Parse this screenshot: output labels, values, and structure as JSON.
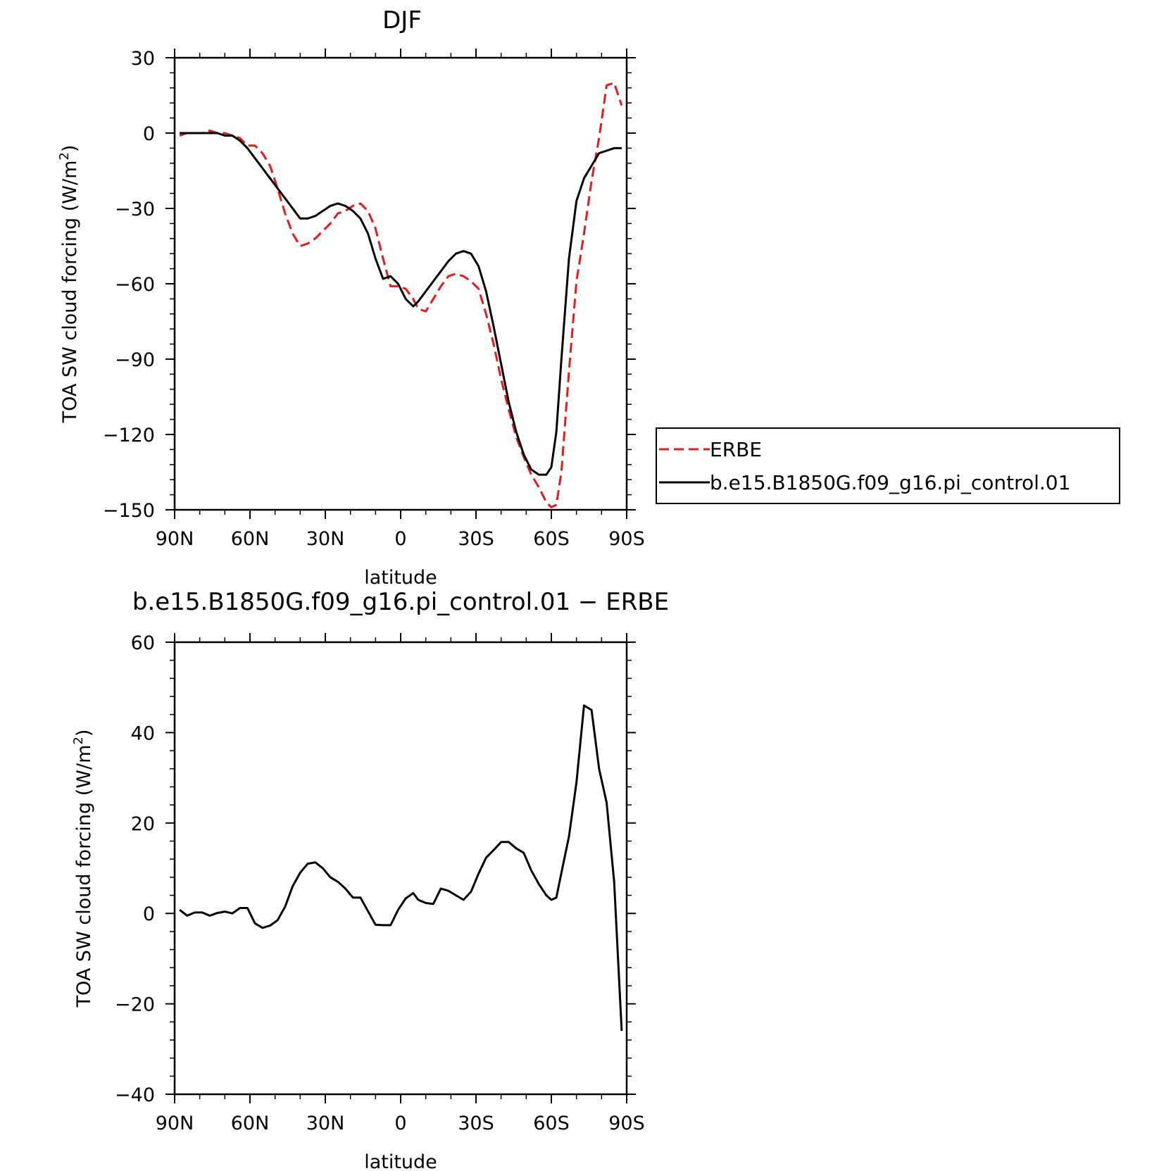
{
  "chart_data": [
    {
      "type": "line",
      "title": "DJF",
      "xlabel": "latitude",
      "ylabel": "TOA SW cloud forcing (W/m",
      "ylabel_sup": "2",
      "ylabel_tail": ")",
      "xlim": [
        90,
        -90
      ],
      "ylim": [
        -150,
        30
      ],
      "xticks": [
        90,
        60,
        30,
        0,
        -30,
        -60,
        -90
      ],
      "xtick_labels": [
        "90N",
        "60N",
        "30N",
        "0",
        "30S",
        "60S",
        "90S"
      ],
      "yticks": [
        30,
        0,
        -30,
        -60,
        -90,
        -120,
        -150
      ],
      "ytick_labels": [
        "30",
        "0",
        "−30",
        "−60",
        "−90",
        "−120",
        "−150"
      ],
      "grid": false,
      "legend_position": "right",
      "series": [
        {
          "name": "ERBE",
          "color": "#e41a1c",
          "dash": true,
          "x": [
            88,
            85,
            82,
            79,
            76,
            73,
            70,
            67,
            64,
            61,
            58,
            55,
            52,
            49,
            46,
            43,
            40,
            37,
            34,
            31,
            28,
            25,
            22,
            19,
            16,
            13,
            10,
            7,
            4,
            1,
            -2,
            -5,
            -7,
            -10,
            -13,
            -16,
            -19,
            -22,
            -25,
            -28,
            -31,
            -34,
            -37,
            -40,
            -43,
            -46,
            -49,
            -52,
            -55,
            -58,
            -60,
            -62,
            -64,
            -67,
            -70,
            -73,
            -76,
            -79,
            -82,
            -85,
            -88
          ],
          "y": [
            -1,
            0,
            0,
            0,
            1,
            0,
            0,
            -1,
            -2,
            -5,
            -5,
            -8,
            -13,
            -22,
            -32,
            -40,
            -45,
            -44,
            -42,
            -39,
            -36,
            -32,
            -31,
            -29,
            -28,
            -31,
            -38,
            -50,
            -61,
            -61,
            -62,
            -66,
            -70,
            -71,
            -66,
            -61,
            -57,
            -56,
            -57,
            -59,
            -62,
            -72,
            -84,
            -98,
            -110,
            -121,
            -129,
            -136,
            -141,
            -147,
            -149,
            -148,
            -135,
            -95,
            -59,
            -40,
            -19,
            -2,
            19,
            20,
            11
          ]
        },
        {
          "name": "b.e15.B1850G.f09_g16.pi_control.01",
          "color": "#000000",
          "dash": false,
          "x": [
            88,
            85,
            82,
            79,
            76,
            73,
            70,
            67,
            64,
            61,
            58,
            55,
            52,
            49,
            46,
            43,
            40,
            37,
            34,
            31,
            28,
            25,
            22,
            19,
            16,
            13,
            10,
            7,
            4,
            1,
            -2,
            -5,
            -7,
            -10,
            -13,
            -16,
            -19,
            -22,
            -25,
            -28,
            -31,
            -34,
            -37,
            -40,
            -43,
            -46,
            -49,
            -52,
            -55,
            -58,
            -60,
            -62,
            -64,
            -67,
            -70,
            -73,
            -76,
            -79,
            -82,
            -85,
            -88
          ],
          "y": [
            0,
            0,
            0,
            0,
            0,
            0,
            -1,
            -1,
            -3,
            -6,
            -10,
            -14,
            -18,
            -22,
            -26,
            -30,
            -34,
            -34,
            -33,
            -31,
            -29,
            -28,
            -29,
            -31,
            -34,
            -40,
            -50,
            -58,
            -57,
            -60,
            -66,
            -69,
            -67,
            -63,
            -59,
            -55,
            -51,
            -48,
            -47,
            -48,
            -53,
            -63,
            -77,
            -92,
            -107,
            -119,
            -128,
            -134,
            -136,
            -136,
            -133,
            -119,
            -90,
            -50,
            -27,
            -18,
            -13,
            -8,
            -7,
            -6,
            -6
          ]
        }
      ]
    },
    {
      "type": "line",
      "title": "b.e15.B1850G.f09_g16.pi_control.01 − ERBE",
      "xlabel": "latitude",
      "ylabel": "TOA SW cloud forcing (W/m",
      "ylabel_sup": "2",
      "ylabel_tail": ")",
      "xlim": [
        90,
        -90
      ],
      "ylim": [
        -40,
        60
      ],
      "xticks": [
        90,
        60,
        30,
        0,
        -30,
        -60,
        -90
      ],
      "xtick_labels": [
        "90N",
        "60N",
        "30N",
        "0",
        "30S",
        "60S",
        "90S"
      ],
      "yticks": [
        60,
        40,
        20,
        0,
        -20,
        -40
      ],
      "ytick_labels": [
        "60",
        "40",
        "20",
        "0",
        "−20",
        "−40"
      ],
      "grid": false,
      "series": [
        {
          "color": "#000000",
          "dash": false,
          "x": [
            88,
            85,
            82,
            79,
            76,
            73,
            70,
            67,
            64,
            61,
            58,
            55,
            52,
            49,
            46,
            43,
            40,
            37,
            34,
            31,
            28,
            25,
            22,
            19,
            16,
            13,
            10,
            7,
            4,
            1,
            -2,
            -5,
            -7,
            -10,
            -13,
            -16,
            -19,
            -22,
            -25,
            -28,
            -31,
            -34,
            -37,
            -40,
            -43,
            -46,
            -49,
            -52,
            -55,
            -58,
            -60,
            -62,
            -64,
            -67,
            -70,
            -73,
            -76,
            -79,
            -82,
            -85,
            -88
          ],
          "y": [
            0.8,
            -0.5,
            0.2,
            0.2,
            -0.5,
            0.1,
            0.4,
            0,
            1.2,
            1.2,
            -2.2,
            -3.2,
            -2.7,
            -1.5,
            1.5,
            6,
            9,
            11,
            11.3,
            10,
            8,
            7,
            5.5,
            3.5,
            3.5,
            0.5,
            -2.5,
            -2.6,
            -2.6,
            0.8,
            3.3,
            4.5,
            3,
            2.3,
            2.1,
            5.5,
            5,
            4,
            3,
            4.8,
            8.8,
            12.3,
            14,
            15.8,
            15.8,
            14.4,
            13.4,
            9.5,
            6.5,
            4,
            3,
            3.5,
            9,
            17,
            29,
            46,
            45,
            32,
            24.5,
            7,
            -26
          ]
        }
      ]
    }
  ]
}
